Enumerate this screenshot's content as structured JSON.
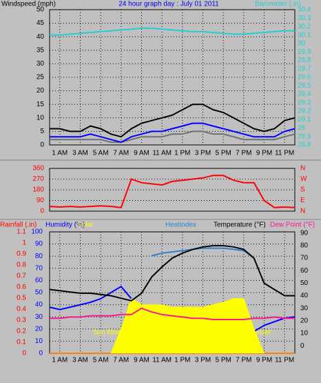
{
  "chart_data": [
    {
      "type": "line",
      "title": "24 hour graph day : July 01 2011",
      "ylabel": "Windspeed (mph)",
      "x": [
        0,
        1,
        2,
        3,
        4,
        5,
        6,
        7,
        8,
        9,
        10,
        11,
        12,
        13,
        14,
        15,
        16,
        17,
        18,
        19,
        20,
        21,
        22,
        23,
        24
      ],
      "xlim": [
        0,
        24
      ],
      "xticks": [
        {
          "value": 1,
          "label": "1 AM"
        },
        {
          "value": 3,
          "label": "3 AM"
        },
        {
          "value": 5,
          "label": "5 AM"
        },
        {
          "value": 7,
          "label": "7 AM"
        },
        {
          "value": 9,
          "label": "9 AM"
        },
        {
          "value": 11,
          "label": "11 AM"
        },
        {
          "value": 13,
          "label": "1 PM"
        },
        {
          "value": 15,
          "label": "3 PM"
        },
        {
          "value": 17,
          "label": "5 PM"
        },
        {
          "value": 19,
          "label": "7 PM"
        },
        {
          "value": 21,
          "label": "9 PM"
        },
        {
          "value": 23,
          "label": "11 PM"
        }
      ],
      "ylim": [
        0,
        50
      ],
      "yticks": [
        0,
        5,
        10,
        15,
        20,
        25,
        30,
        35,
        40,
        45,
        50
      ],
      "ytick_color": "#000000",
      "y2lim": [
        28.8,
        30.4
      ],
      "y2ticks": [
        28.8,
        28.9,
        29,
        29.1,
        29.2,
        29.3,
        29.4,
        29.5,
        29.6,
        29.7,
        29.8,
        29.9,
        30,
        30.1,
        30.2,
        30.3,
        30.4
      ],
      "y2tick_color": "#20d0d0",
      "grid": true,
      "series": [
        {
          "color": "#000000",
          "axis": "y",
          "values": [
            6,
            6,
            5,
            5,
            7,
            6,
            4,
            3,
            6,
            8,
            9,
            10,
            11,
            13,
            15,
            15,
            13,
            12,
            10,
            8,
            6,
            5,
            6,
            9,
            10
          ]
        },
        {
          "color": "#707070",
          "axis": "y",
          "values": [
            2,
            2,
            2,
            2,
            2,
            2,
            1,
            1,
            2,
            3,
            3,
            3,
            4,
            4,
            5,
            5,
            4,
            4,
            3,
            2,
            2,
            2,
            2,
            3,
            4
          ]
        },
        {
          "color": "#0000ff",
          "axis": "y",
          "values": [
            3,
            3,
            3,
            3,
            4,
            3,
            2,
            1,
            3,
            4,
            5,
            5,
            6,
            7,
            8,
            8,
            7,
            6,
            5,
            4,
            3,
            3,
            3,
            5,
            6
          ]
        },
        {
          "name": "Barometer (.in)",
          "color": "#20d0d0",
          "axis": "y2",
          "values": [
            30.1,
            30.1,
            30.11,
            30.12,
            30.13,
            30.14,
            30.15,
            30.16,
            30.17,
            30.18,
            30.18,
            30.17,
            30.16,
            30.15,
            30.14,
            30.14,
            30.13,
            30.12,
            30.11,
            30.11,
            30.12,
            30.13,
            30.14,
            30.15,
            30.15
          ]
        }
      ]
    },
    {
      "type": "line",
      "x": [
        0,
        1,
        2,
        3,
        4,
        5,
        6,
        7,
        8,
        9,
        10,
        11,
        12,
        13,
        14,
        15,
        16,
        17,
        18,
        19,
        20,
        21,
        22,
        23,
        24
      ],
      "xlim": [
        0,
        24
      ],
      "ylim": [
        0,
        360
      ],
      "yticks": [
        0,
        90,
        180,
        270,
        360
      ],
      "ytick_color": "#ff0000",
      "y2lim": [
        0,
        360
      ],
      "y2ticks": [
        {
          "value": 0,
          "label": "N"
        },
        {
          "value": 90,
          "label": "E"
        },
        {
          "value": 180,
          "label": "S"
        },
        {
          "value": 270,
          "label": "W"
        },
        {
          "value": 360,
          "label": "N"
        }
      ],
      "y2tick_color": "#ff0000",
      "grid": true,
      "series": [
        {
          "color": "#ff0000",
          "axis": "y",
          "values": [
            40,
            35,
            40,
            35,
            40,
            45,
            40,
            30,
            270,
            240,
            230,
            220,
            250,
            260,
            270,
            280,
            300,
            300,
            260,
            240,
            240,
            90,
            30,
            35,
            30
          ]
        }
      ]
    },
    {
      "type": "line",
      "x": [
        0,
        1,
        2,
        3,
        4,
        5,
        6,
        7,
        8,
        9,
        10,
        11,
        12,
        13,
        14,
        15,
        16,
        17,
        18,
        19,
        20,
        21,
        22,
        23,
        24
      ],
      "xlim": [
        0,
        24
      ],
      "xticks": [
        {
          "value": 1,
          "label": "1 AM"
        },
        {
          "value": 3,
          "label": "3 AM"
        },
        {
          "value": 5,
          "label": "5 AM"
        },
        {
          "value": 7,
          "label": "7 AM"
        },
        {
          "value": 9,
          "label": "9 AM"
        },
        {
          "value": 11,
          "label": "11 AM"
        },
        {
          "value": 13,
          "label": "1 PM"
        },
        {
          "value": 15,
          "label": "3 PM"
        },
        {
          "value": 17,
          "label": "5 PM"
        },
        {
          "value": 19,
          "label": "7 PM"
        },
        {
          "value": 21,
          "label": "9 PM"
        },
        {
          "value": 23,
          "label": "11 PM"
        }
      ],
      "ylim": [
        0,
        100
      ],
      "yticks": [
        0,
        10,
        20,
        30,
        40,
        50,
        60,
        70,
        80,
        90,
        100
      ],
      "ytick_color": "#0000ff",
      "y2lim": [
        -6,
        91
      ],
      "y2ticks": [
        0,
        10,
        20,
        30,
        40,
        50,
        60,
        70,
        80,
        90
      ],
      "y2tick_color": "#000000",
      "y3lim": [
        0,
        1.1
      ],
      "y3ticks": [
        0,
        0.1,
        0.2,
        0.3,
        0.4,
        0.5,
        0.6,
        0.7,
        0.8,
        0.9,
        1,
        1.1
      ],
      "y3tick_color": "#ff0000",
      "grid": true,
      "annotations": [
        "Sun Rise",
        "Sunset"
      ],
      "series": [
        {
          "name": "Rainfall (.in)",
          "color": "#ff0000",
          "axis": "y3",
          "values": [
            0,
            0,
            0,
            0,
            0,
            0,
            0,
            0,
            0,
            0,
            0,
            0,
            0,
            0,
            0,
            0,
            0,
            0,
            0,
            0,
            0,
            0,
            0,
            0,
            0
          ]
        },
        {
          "name": "Humidity (%)",
          "color": "#0000ff",
          "axis": "y",
          "values": [
            38,
            36,
            38,
            40,
            42,
            45,
            50,
            55,
            45,
            38,
            30,
            25,
            22,
            18,
            15,
            13,
            12,
            12,
            12,
            14,
            18,
            23,
            26,
            29,
            30
          ]
        },
        {
          "name": "Solar",
          "color": "#ffff00",
          "axis": "y",
          "area": true,
          "values": [
            0,
            0,
            0,
            0,
            0,
            0,
            0,
            20,
            45,
            40,
            40,
            40,
            38,
            38,
            38,
            38,
            40,
            42,
            45,
            45,
            20,
            0,
            0,
            0,
            0
          ]
        },
        {
          "name": "Heatindex",
          "color": "#3080d0",
          "axis": "y2",
          "values": [
            null,
            null,
            null,
            null,
            null,
            null,
            null,
            null,
            null,
            null,
            72,
            74,
            75,
            76,
            77,
            78,
            78,
            78,
            77,
            76,
            70,
            null,
            null,
            null,
            null
          ]
        },
        {
          "name": "Temperature (°F)",
          "color": "#000000",
          "axis": "y2",
          "values": [
            45,
            44,
            43,
            42,
            42,
            41,
            40,
            38,
            36,
            42,
            55,
            63,
            70,
            74,
            77,
            79,
            80,
            80,
            79,
            77,
            70,
            50,
            45,
            40,
            40
          ]
        },
        {
          "name": "Dew Point (°F)",
          "color": "#ff1493",
          "axis": "y2",
          "values": [
            22,
            22,
            23,
            23,
            24,
            24,
            24,
            25,
            25,
            30,
            27,
            25,
            24,
            23,
            22,
            22,
            21,
            21,
            21,
            21,
            22,
            22,
            23,
            22,
            22
          ]
        }
      ]
    }
  ]
}
